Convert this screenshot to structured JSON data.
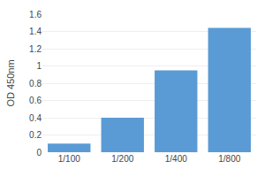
{
  "chart_data": {
    "type": "bar",
    "categories": [
      "1/100",
      "1/200",
      "1/400",
      "1/800"
    ],
    "values": [
      0.1,
      0.4,
      0.95,
      1.44
    ],
    "color": "#5b9bd5",
    "ylabel": "OD 450nm",
    "ylim": [
      0,
      1.6
    ],
    "yticks": [
      0.0,
      0.2,
      0.4,
      0.6,
      0.8,
      1.0,
      1.2,
      1.4,
      1.6
    ],
    "grid": true
  }
}
